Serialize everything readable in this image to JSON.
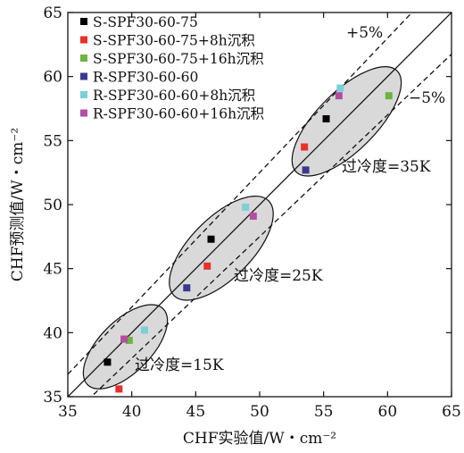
{
  "chart_data": {
    "type": "scatter",
    "xlabel": "CHF实验值/W・cm⁻²",
    "ylabel": "CHF预测值/W・cm⁻²",
    "xlim": [
      35,
      65
    ],
    "ylim": [
      35,
      65
    ],
    "xticks": [
      35,
      40,
      45,
      50,
      55,
      60,
      65
    ],
    "yticks": [
      35,
      40,
      45,
      50,
      55,
      60,
      65
    ],
    "grid": false,
    "legend_position": "top-left",
    "reference_lines": [
      {
        "label": "",
        "slope": 1.0,
        "style": "solid"
      },
      {
        "label": "+5%",
        "slope": 1.05,
        "style": "dashed"
      },
      {
        "label": "−5%",
        "slope": 0.95,
        "style": "dashed"
      }
    ],
    "annotations": [
      {
        "text": "过冷度=15K",
        "group_center": [
          39.5,
          38.9
        ]
      },
      {
        "text": "过冷度=25K",
        "group_center": [
          47.0,
          46.6
        ]
      },
      {
        "text": "过冷度=35K",
        "group_center": [
          56.8,
          56.5
        ]
      }
    ],
    "series": [
      {
        "name": "S-SPF30-60-75",
        "color": "#000000",
        "points": [
          [
            38.1,
            37.7
          ],
          [
            46.2,
            47.3
          ],
          [
            55.2,
            56.7
          ]
        ]
      },
      {
        "name": "S-SPF30-60-75+8h沉积",
        "color": "#e8302a",
        "points": [
          [
            39.0,
            35.6
          ],
          [
            45.9,
            45.2
          ],
          [
            53.5,
            54.5
          ]
        ]
      },
      {
        "name": "S-SPF30-60-75+16h沉积",
        "color": "#6db33f",
        "points": [
          [
            39.8,
            39.4
          ],
          [
            60.1,
            58.5
          ]
        ]
      },
      {
        "name": "R-SPF30-60-60",
        "color": "#3a3a8c",
        "points": [
          [
            44.3,
            43.5
          ],
          [
            53.6,
            52.7
          ]
        ]
      },
      {
        "name": "R-SPF30-60-60+8h沉积",
        "color": "#7ccfd6",
        "points": [
          [
            41.0,
            40.2
          ],
          [
            48.9,
            49.8
          ],
          [
            56.3,
            59.1
          ]
        ]
      },
      {
        "name": "R-SPF30-60-60+16h沉积",
        "color": "#b24ea3",
        "points": [
          [
            39.4,
            39.5
          ],
          [
            49.5,
            49.1
          ],
          [
            56.2,
            58.5
          ]
        ]
      }
    ]
  }
}
